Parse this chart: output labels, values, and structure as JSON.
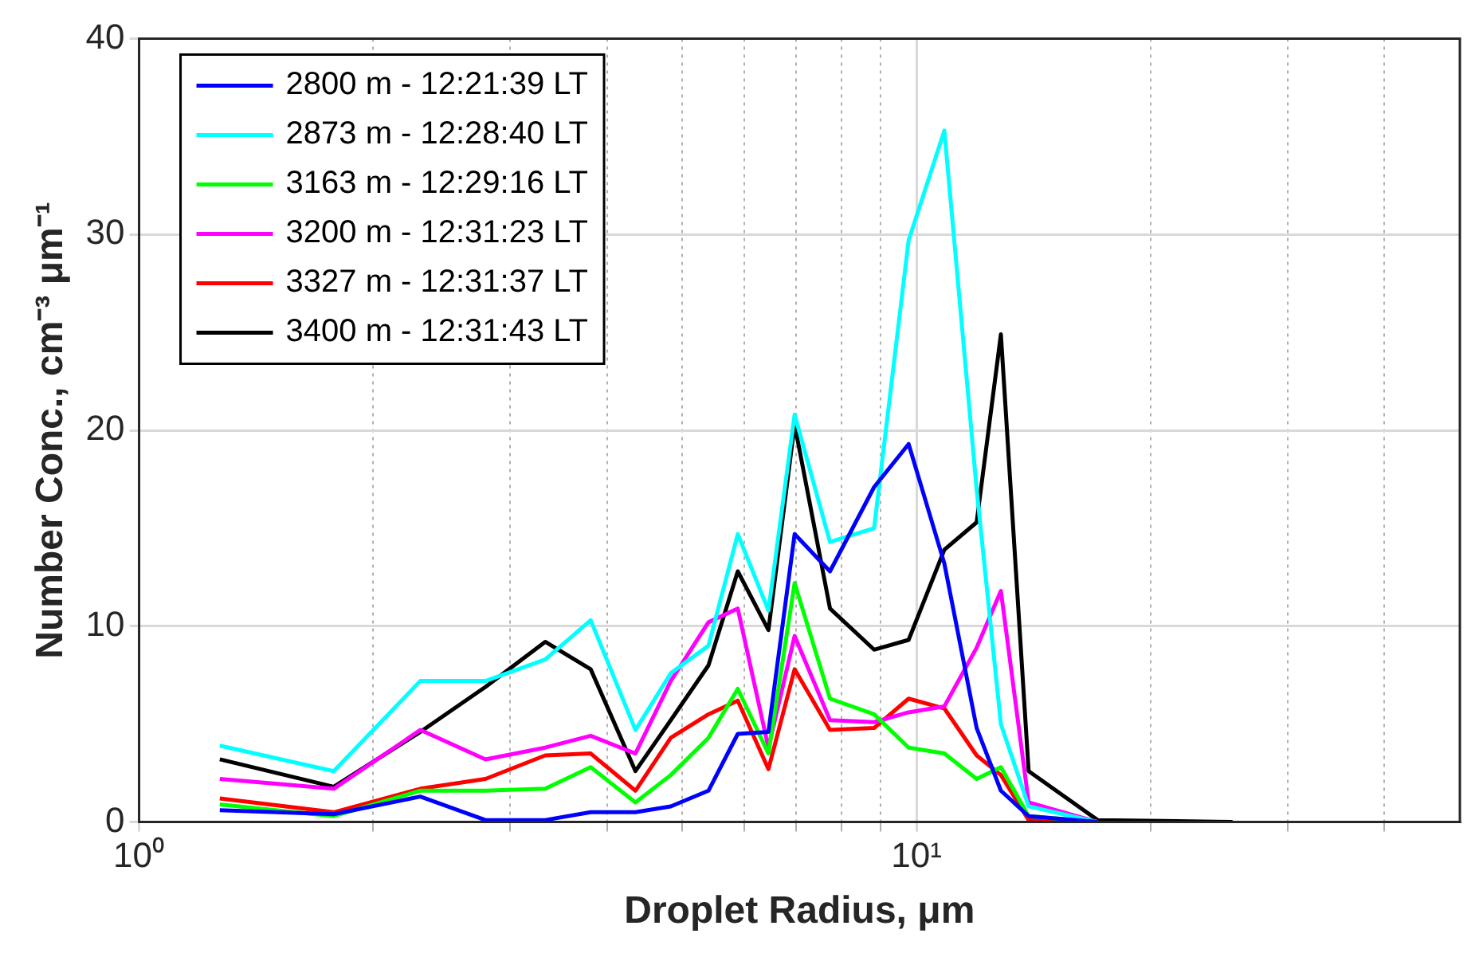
{
  "chart_data": {
    "type": "line",
    "xlabel": "Droplet Radius, μm",
    "ylabel": "Number Conc., cm⁻³ μm⁻¹",
    "x": [
      1.27,
      1.78,
      2.3,
      2.79,
      3.33,
      3.81,
      4.35,
      4.83,
      5.4,
      5.89,
      6.45,
      6.97,
      7.74,
      8.82,
      9.77,
      10.86,
      11.95,
      12.84,
      13.94,
      17.1
    ],
    "series": [
      {
        "name": "2800 m - 12:21:39 LT",
        "color": "#0000ff",
        "values": [
          0.6,
          0.4,
          1.3,
          0.1,
          0.1,
          0.5,
          0.5,
          0.8,
          1.6,
          4.5,
          4.6,
          14.7,
          12.8,
          17.1,
          19.3,
          13.2,
          4.8,
          1.6,
          0.3,
          0
        ]
      },
      {
        "name": "2873 m - 12:28:40 LT",
        "color": "#00ffff",
        "values": [
          3.9,
          2.6,
          7.2,
          7.2,
          8.3,
          10.3,
          4.7,
          7.6,
          9,
          14.7,
          10.8,
          20.8,
          14.3,
          15,
          29.7,
          35.3,
          17,
          5,
          0.8,
          0
        ]
      },
      {
        "name": "3163 m - 12:29:16 LT",
        "color": "#00ff00",
        "values": [
          0.9,
          0.3,
          1.6,
          1.6,
          1.7,
          2.8,
          1,
          2.4,
          4.3,
          6.8,
          3.5,
          12.2,
          6.3,
          5.5,
          3.8,
          3.5,
          2.2,
          2.8,
          0.3,
          0
        ]
      },
      {
        "name": "3200 m - 12:31:23 LT",
        "color": "#ff00ff",
        "values": [
          2.2,
          1.7,
          4.7,
          3.2,
          3.8,
          4.4,
          3.5,
          7.2,
          10.2,
          10.9,
          3.8,
          9.5,
          5.2,
          5.1,
          5.6,
          5.9,
          8.9,
          11.8,
          1,
          0
        ]
      },
      {
        "name": "3327 m - 12:31:37 LT",
        "color": "#ff0000",
        "values": [
          1.2,
          0.5,
          1.7,
          2.2,
          3.4,
          3.5,
          1.6,
          4.3,
          5.5,
          6.2,
          2.7,
          7.8,
          4.7,
          4.8,
          6.3,
          5.8,
          3.4,
          2.4,
          0.1,
          0
        ]
      },
      {
        "name": "3400 m - 12:31:43 LT",
        "color": "#000000",
        "x": [
          1.27,
          1.78,
          2.3,
          2.79,
          3.33,
          3.81,
          4.35,
          4.83,
          5.4,
          5.89,
          6.45,
          6.97,
          7.74,
          8.82,
          9.77,
          10.86,
          11.95,
          12.84,
          13.94,
          17.1,
          20.8,
          25.5
        ],
        "values": [
          3.2,
          1.8,
          4.6,
          6.9,
          9.2,
          7.8,
          2.6,
          5.2,
          8,
          12.8,
          9.8,
          20.3,
          10.9,
          8.8,
          9.3,
          13.9,
          15.3,
          24.9,
          2.6,
          0.1,
          0.05,
          0
        ]
      }
    ],
    "log": "x",
    "xlim": [
      1,
      50
    ],
    "xticks": [
      {
        "value": 1,
        "label": "10⁰"
      },
      {
        "value": 2,
        "label": null
      },
      {
        "value": 3,
        "label": null
      },
      {
        "value": 4,
        "label": null
      },
      {
        "value": 5,
        "label": null
      },
      {
        "value": 6,
        "label": null
      },
      {
        "value": 7,
        "label": null
      },
      {
        "value": 8,
        "label": null
      },
      {
        "value": 9,
        "label": null
      },
      {
        "value": 10,
        "label": "10¹"
      },
      {
        "value": 20,
        "label": null
      },
      {
        "value": 30,
        "label": null
      },
      {
        "value": 40,
        "label": null
      }
    ],
    "ylim": [
      0,
      40
    ],
    "yticks": [
      0,
      10,
      20,
      30,
      40
    ],
    "grid": true,
    "legend": "top left",
    "marker": "none",
    "line_style": "solid"
  }
}
